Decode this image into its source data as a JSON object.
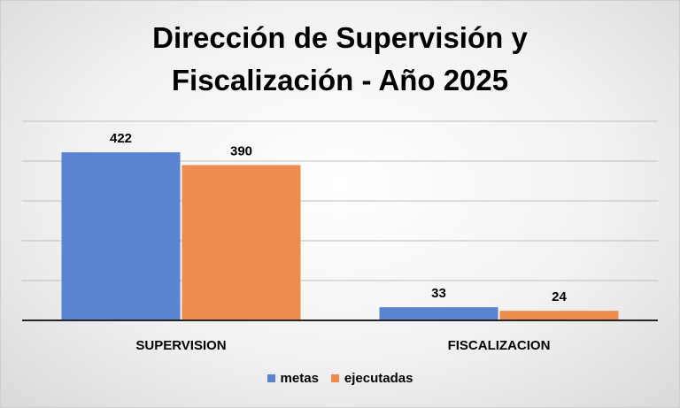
{
  "title_line1": "Dirección de Supervisión y",
  "title_line2": "Fiscalización - Año 2025",
  "chart_data": {
    "type": "bar",
    "title": "Dirección de Supervisión y Fiscalización - Año 2025",
    "categories": [
      "SUPERVISION",
      "FISCALIZACION"
    ],
    "series": [
      {
        "name": "metas",
        "values": [
          422,
          33
        ],
        "color": "#5b83d1"
      },
      {
        "name": "ejecutadas",
        "values": [
          390,
          24
        ],
        "color": "#ee8c4f"
      }
    ],
    "ylim": [
      0,
      500
    ],
    "grid": true,
    "y_axis_labels": false,
    "legend": "bottom"
  }
}
